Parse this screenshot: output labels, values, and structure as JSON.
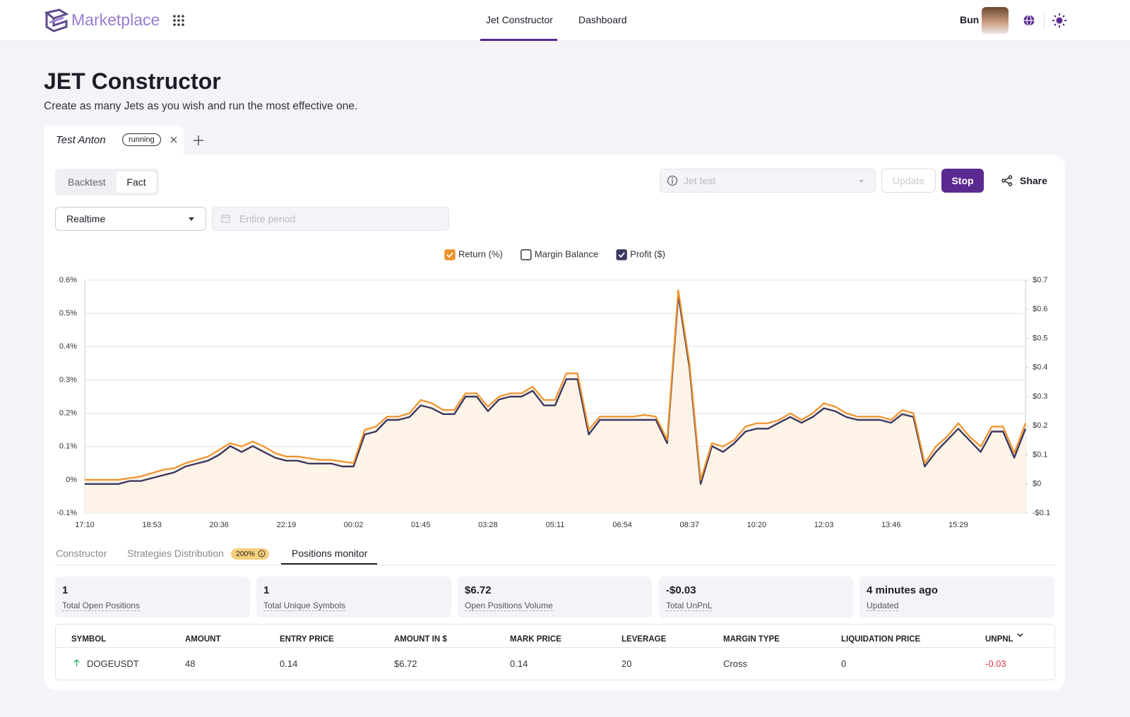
{
  "header": {
    "brand": "Marketplace",
    "nav": [
      "Jet Constructor",
      "Dashboard"
    ],
    "user": "Bun"
  },
  "page": {
    "title": "JET Constructor",
    "subtitle": "Create as many Jets as you wish and run the most effective one."
  },
  "jet_tab": {
    "name": "Test Anton",
    "status": "running"
  },
  "mode_toggle": [
    "Backtest",
    "Fact"
  ],
  "controls": {
    "range": "Realtime",
    "period_placeholder": "Entire period",
    "jet_placeholder": "Jet test",
    "update": "Update",
    "stop": "Stop",
    "share": "Share"
  },
  "chart_data": {
    "type": "line",
    "categories": [
      "17:10",
      null,
      null,
      null,
      null,
      null,
      "18:53",
      null,
      null,
      null,
      null,
      null,
      "20:36",
      null,
      null,
      null,
      null,
      null,
      "22:19",
      null,
      null,
      null,
      null,
      null,
      "00:02",
      null,
      null,
      null,
      null,
      null,
      "01:45",
      null,
      null,
      null,
      null,
      null,
      "03:28",
      null,
      null,
      null,
      null,
      null,
      "05:11",
      null,
      null,
      null,
      null,
      null,
      "06:54",
      null,
      null,
      null,
      null,
      null,
      "08:37",
      null,
      null,
      null,
      null,
      null,
      "10:20",
      null,
      null,
      null,
      null,
      null,
      "12:03",
      null,
      null,
      null,
      null,
      null,
      "13:46",
      null,
      null,
      null,
      null,
      null,
      "15:29",
      null,
      null,
      null,
      null,
      null,
      null
    ],
    "series": [
      {
        "name": "Return (%)",
        "color": "#f0922b",
        "fill": "#fdf3e7",
        "checked": true,
        "values": [
          0,
          0,
          0,
          0,
          0.005,
          0.01,
          0.02,
          0.03,
          0.035,
          0.05,
          0.06,
          0.07,
          0.09,
          0.11,
          0.1,
          0.115,
          0.1,
          0.08,
          0.07,
          0.07,
          0.065,
          0.06,
          0.06,
          0.055,
          0.05,
          0.15,
          0.16,
          0.19,
          0.19,
          0.2,
          0.24,
          0.23,
          0.21,
          0.21,
          0.26,
          0.26,
          0.22,
          0.25,
          0.26,
          0.26,
          0.28,
          0.24,
          0.24,
          0.32,
          0.32,
          0.15,
          0.19,
          0.19,
          0.19,
          0.19,
          0.195,
          0.19,
          0.12,
          0.57,
          0.35,
          0,
          0.11,
          0.1,
          0.12,
          0.16,
          0.17,
          0.17,
          0.18,
          0.2,
          0.18,
          0.2,
          0.23,
          0.22,
          0.2,
          0.19,
          0.19,
          0.19,
          0.18,
          0.21,
          0.2,
          0.05,
          0.1,
          0.13,
          0.17,
          0.13,
          0.1,
          0.16,
          0.16,
          0.08,
          0.17
        ]
      },
      {
        "name": "Profit ($)",
        "color": "#3b3860",
        "axis": "y2",
        "checked": true,
        "values": [
          0,
          0,
          0,
          0,
          0.01,
          0.01,
          0.02,
          0.03,
          0.04,
          0.06,
          0.07,
          0.08,
          0.1,
          0.13,
          0.11,
          0.13,
          0.11,
          0.09,
          0.08,
          0.08,
          0.07,
          0.07,
          0.07,
          0.06,
          0.06,
          0.17,
          0.18,
          0.22,
          0.22,
          0.23,
          0.27,
          0.26,
          0.24,
          0.24,
          0.3,
          0.3,
          0.25,
          0.29,
          0.3,
          0.3,
          0.32,
          0.27,
          0.27,
          0.36,
          0.36,
          0.17,
          0.22,
          0.22,
          0.22,
          0.22,
          0.22,
          0.22,
          0.14,
          0.65,
          0.4,
          0,
          0.13,
          0.11,
          0.14,
          0.18,
          0.19,
          0.19,
          0.21,
          0.23,
          0.21,
          0.23,
          0.26,
          0.25,
          0.23,
          0.22,
          0.22,
          0.22,
          0.21,
          0.24,
          0.23,
          0.06,
          0.11,
          0.15,
          0.19,
          0.15,
          0.11,
          0.18,
          0.18,
          0.09,
          0.19
        ]
      }
    ],
    "hidden_series": [
      {
        "name": "Margin Balance",
        "checked": false
      }
    ],
    "ylim": [
      -0.1,
      0.6
    ],
    "yticks": [
      {
        "value": -0.1,
        "label": "-0.1%"
      },
      {
        "value": 0,
        "label": "0%"
      },
      {
        "value": 0.1,
        "label": "0.1%"
      },
      {
        "value": 0.2,
        "label": "0.2%"
      },
      {
        "value": 0.3,
        "label": "0.3%"
      },
      {
        "value": 0.4,
        "label": "0.4%"
      },
      {
        "value": 0.5,
        "label": "0.5%"
      },
      {
        "value": 0.6,
        "label": "0.6%"
      }
    ],
    "y2lim": [
      -0.1,
      0.7
    ],
    "y2ticks": [
      {
        "value": -0.1,
        "label": "-$0.1"
      },
      {
        "value": 0,
        "label": "$0"
      },
      {
        "value": 0.1,
        "label": "$0.1"
      },
      {
        "value": 0.2,
        "label": "$0.2"
      },
      {
        "value": 0.3,
        "label": "$0.3"
      },
      {
        "value": 0.4,
        "label": "$0.4"
      },
      {
        "value": 0.5,
        "label": "$0.5"
      },
      {
        "value": 0.6,
        "label": "$0.6"
      },
      {
        "value": 0.7,
        "label": "$0.7"
      }
    ],
    "grid": true
  },
  "sub_tabs": {
    "constructor": "Constructor",
    "strategies": "Strategies Distribution",
    "strategies_badge": "200%",
    "positions": "Positions monitor"
  },
  "stats": [
    {
      "value": "1",
      "label": "Total Open Positions"
    },
    {
      "value": "1",
      "label": "Total Unique Symbols"
    },
    {
      "value": "$6.72",
      "label": "Open Positions Volume"
    },
    {
      "value": "-$0.03",
      "label": "Total UnPnL"
    },
    {
      "value": "4 minutes ago",
      "label": "Updated"
    }
  ],
  "table": {
    "columns": [
      "SYMBOL",
      "AMOUNT",
      "ENTRY PRICE",
      "AMOUNT IN $",
      "MARK PRICE",
      "LEVERAGE",
      "MARGIN TYPE",
      "LIQUIDATION PRICE",
      "UNPNL"
    ],
    "rows": [
      [
        "DOGEUSDT",
        "48",
        "0.14",
        "$6.72",
        "0.14",
        "20",
        "Cross",
        "0",
        "-0.03"
      ]
    ]
  }
}
